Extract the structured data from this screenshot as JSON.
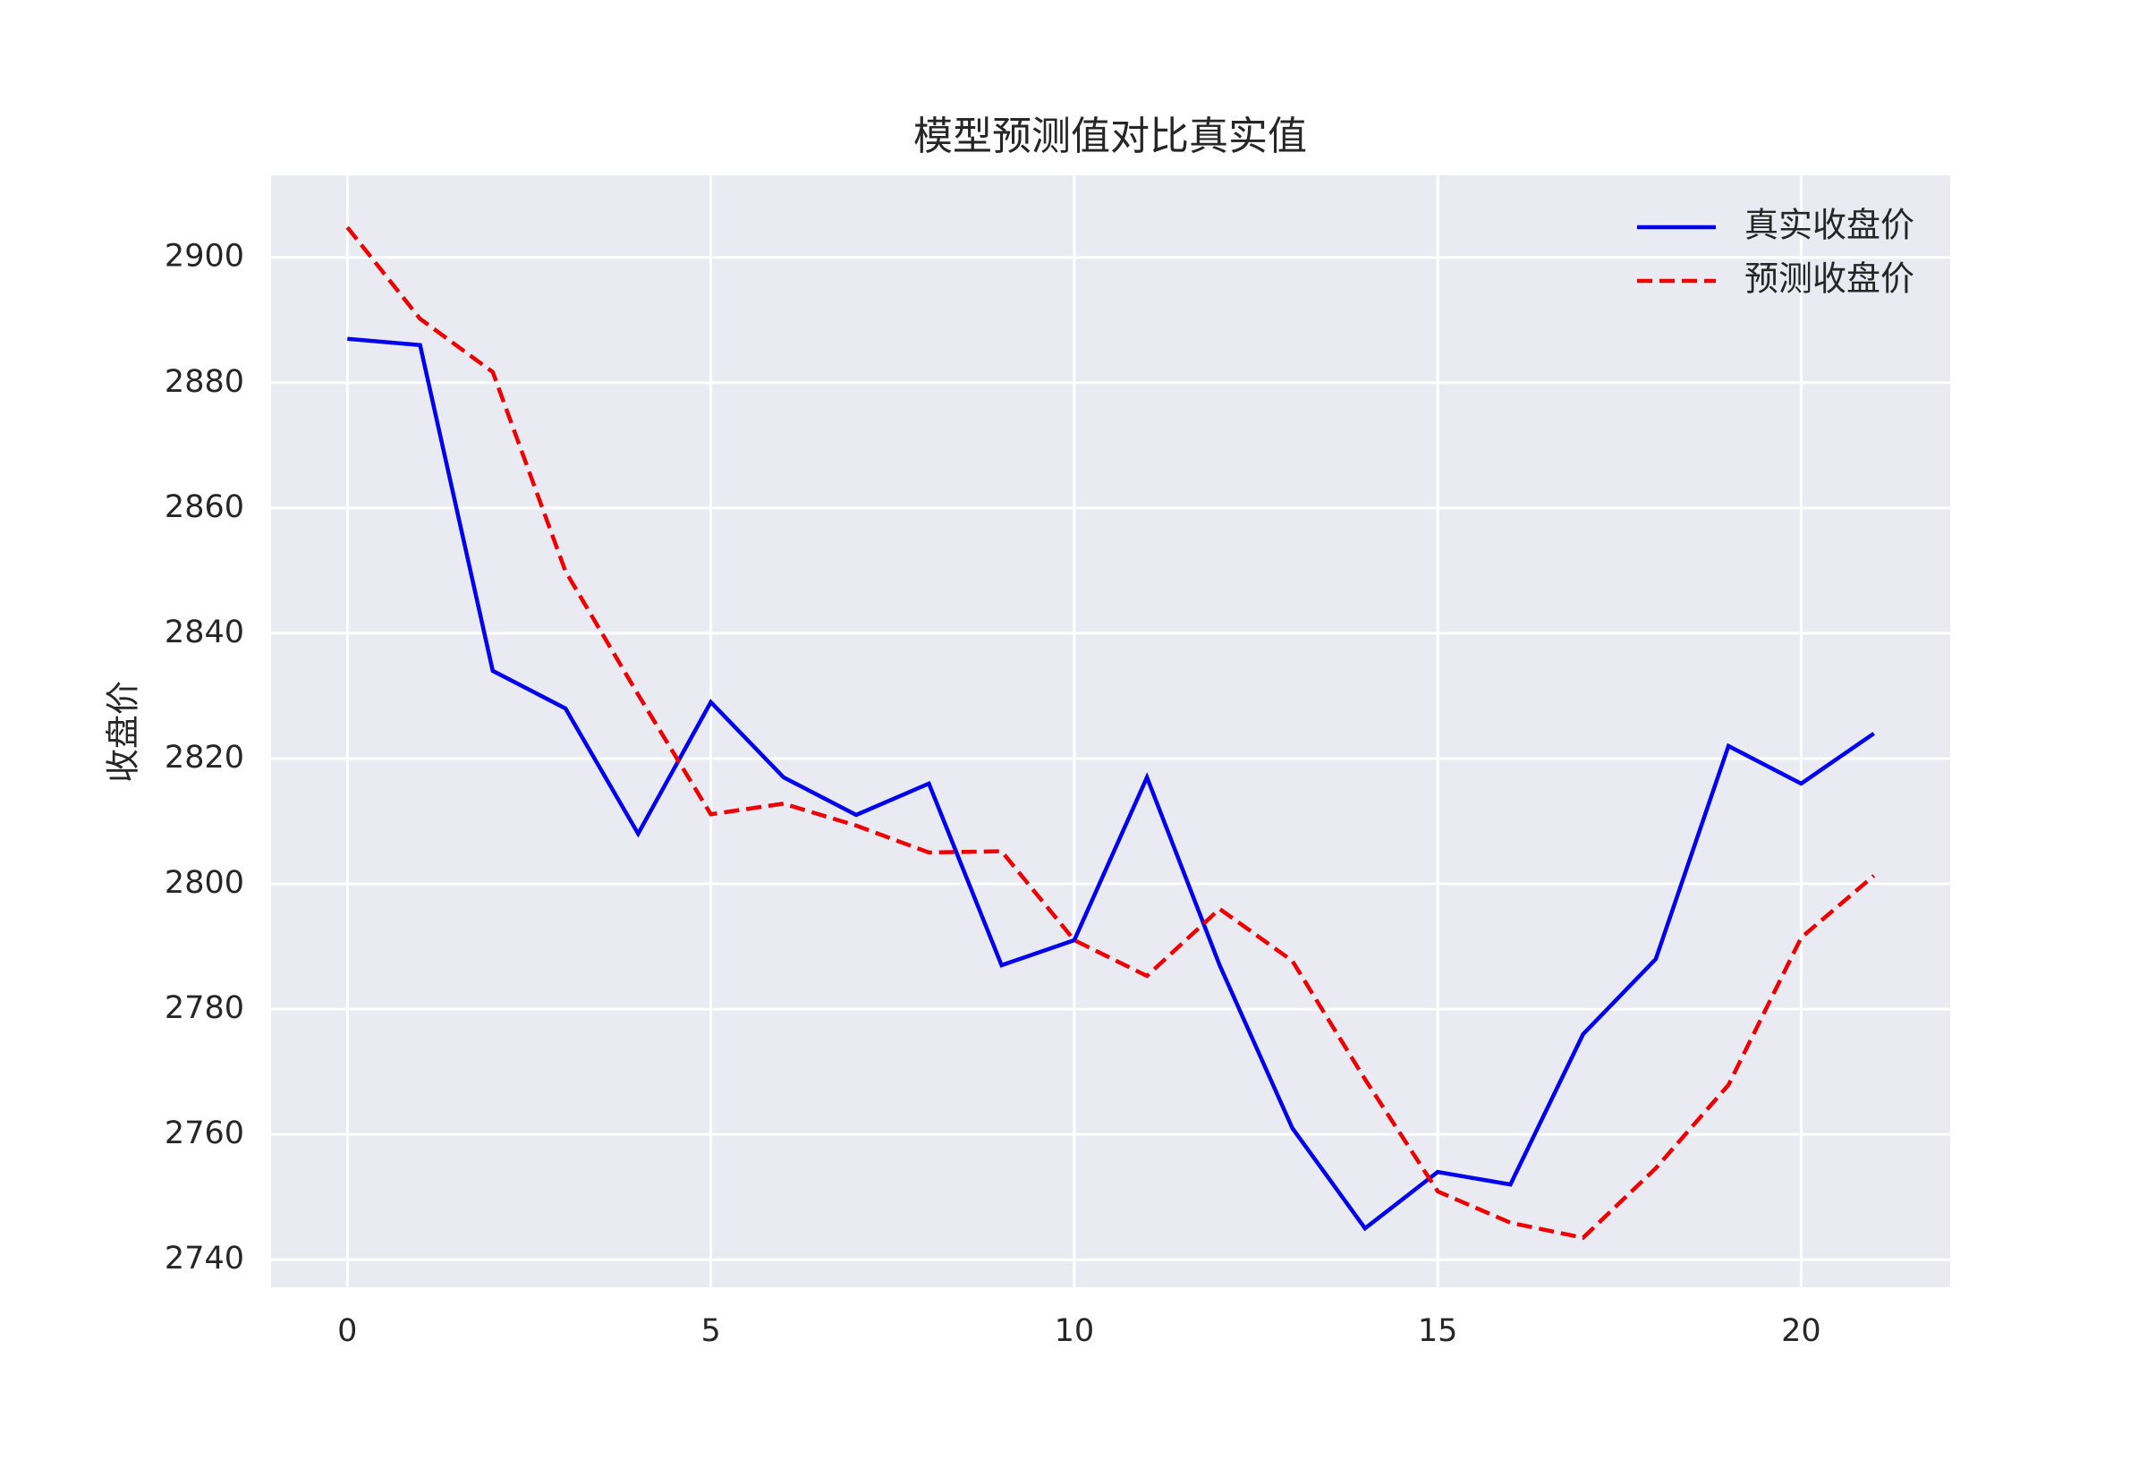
{
  "chart_data": {
    "type": "line",
    "title": "模型预测值对比真实值",
    "y_label": "收盘价",
    "x": [
      0,
      1,
      2,
      3,
      4,
      5,
      6,
      7,
      8,
      9,
      10,
      11,
      12,
      13,
      14,
      15,
      16,
      17,
      18,
      19,
      20,
      21
    ],
    "series": [
      {
        "name": "真实收盘价",
        "color": "#0000ee",
        "dash": "solid",
        "values": [
          2887,
          2886,
          2834,
          2828,
          2808,
          2829,
          2817,
          2811,
          2816,
          2787,
          2791,
          2817,
          2787,
          2761,
          2745,
          2754,
          2752,
          2776,
          2788,
          2822,
          2816,
          2824
        ]
      },
      {
        "name": "预测收盘价",
        "color": "#ee0000",
        "dash": "dashed",
        "values": [
          2904.8,
          2890.2,
          2881.7,
          2849.9,
          2830.2,
          2811.1,
          2812.8,
          2809.3,
          2805,
          2805.2,
          2791,
          2785.3,
          2796,
          2787.7,
          2768.8,
          2750.9,
          2745.9,
          2743.5,
          2754.6,
          2767.9,
          2791.4,
          2801.3
        ]
      }
    ],
    "xlim": [
      -1.05,
      22.05
    ],
    "xticks": [
      0,
      5,
      10,
      15,
      20
    ],
    "ylim": [
      2735.6,
      2913.1
    ],
    "yticks": [
      2740,
      2760,
      2780,
      2800,
      2820,
      2840,
      2860,
      2880,
      2900
    ],
    "grid": true,
    "legend": "upper right",
    "background": "#eaeaf2"
  }
}
